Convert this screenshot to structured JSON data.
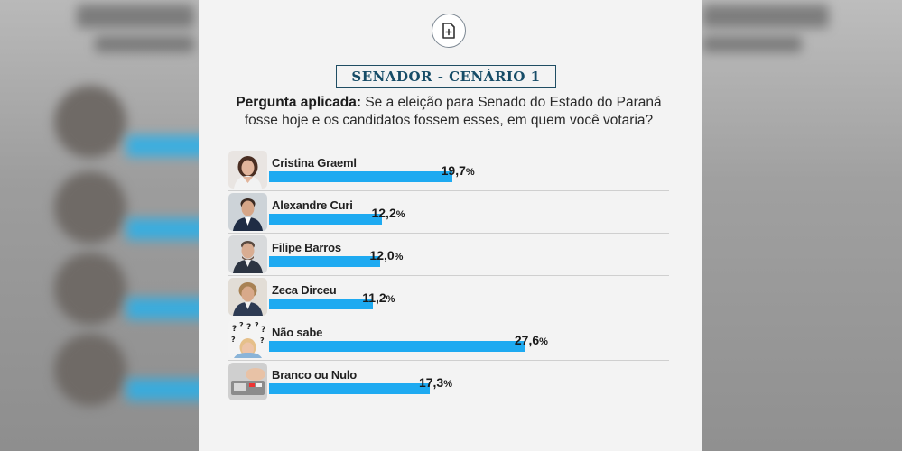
{
  "header": {
    "title": "SENADOR - CENÁRIO 1",
    "question_label": "Pergunta aplicada:",
    "question_text": "Se a eleição para Senado do Estado do Paraná fosse hoje e os candidatos fossem esses, em quem você votaria?"
  },
  "colors": {
    "bar": "#1eaaf1",
    "title": "#164c67",
    "panel": "#f3f3f3"
  },
  "chart_data": {
    "type": "bar",
    "orientation": "horizontal",
    "title": "SENADOR - CENÁRIO 1",
    "categories": [
      "Cristina Graeml",
      "Alexandre Curi",
      "Filipe Barros",
      "Zeca Dirceu",
      "Não sabe",
      "Branco ou Nulo"
    ],
    "values": [
      19.7,
      12.2,
      12.0,
      11.2,
      27.6,
      17.3
    ],
    "labels": [
      "19,7",
      "12,2",
      "12,0",
      "11,2",
      "27,6",
      "17,3"
    ],
    "unit": "%",
    "xlim": [
      0,
      35
    ]
  }
}
